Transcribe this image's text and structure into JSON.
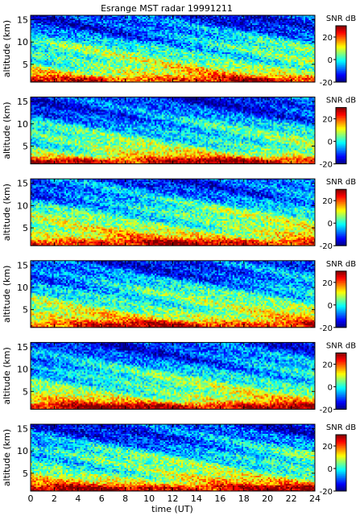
{
  "chart_data": {
    "type": "heatmap",
    "title": "Esrange MST radar 19991211",
    "xlabel": "time (UT)",
    "ylabel": "altitude (km)",
    "colorbar_label": "SNR dB",
    "xlim": [
      0,
      24
    ],
    "ylim": [
      1,
      16
    ],
    "clim": [
      -20,
      30
    ],
    "x_ticks": [
      0,
      2,
      4,
      6,
      8,
      10,
      12,
      14,
      16,
      18,
      20,
      22,
      24
    ],
    "y_ticks": [
      5,
      10,
      15
    ],
    "colorbar_ticks": [
      -20,
      0,
      20
    ],
    "colormap": "jet",
    "panels": [
      {
        "name": "",
        "layers": [
          {
            "altitude": 1.8,
            "snr": 22
          },
          {
            "altitude": 2.8,
            "snr": 12
          },
          {
            "altitude": 4.2,
            "snr": 8
          },
          {
            "altitude": 5.5,
            "snr": 4
          },
          {
            "altitude": 7.5,
            "snr": 2
          },
          {
            "altitude": 9,
            "snr": 0
          },
          {
            "altitude": 12,
            "snr": -8
          },
          {
            "altitude": 15,
            "snr": -12
          }
        ]
      },
      {
        "name": "",
        "layers": [
          {
            "altitude": 1.8,
            "snr": 26
          },
          {
            "altitude": 2.8,
            "snr": 12
          },
          {
            "altitude": 4.2,
            "snr": 6
          },
          {
            "altitude": 5.5,
            "snr": 3
          },
          {
            "altitude": 7.5,
            "snr": 0
          },
          {
            "altitude": 9,
            "snr": -2
          },
          {
            "altitude": 12,
            "snr": -9
          },
          {
            "altitude": 15,
            "snr": -13
          }
        ]
      },
      {
        "name": "",
        "layers": [
          {
            "altitude": 1.8,
            "snr": 25
          },
          {
            "altitude": 2.8,
            "snr": 14
          },
          {
            "altitude": 4.2,
            "snr": 9
          },
          {
            "altitude": 5.5,
            "snr": 5
          },
          {
            "altitude": 7.5,
            "snr": 3
          },
          {
            "altitude": 9,
            "snr": 1
          },
          {
            "altitude": 12,
            "snr": -7
          },
          {
            "altitude": 15,
            "snr": -11
          }
        ]
      },
      {
        "name": "",
        "layers": [
          {
            "altitude": 1.8,
            "snr": 24
          },
          {
            "altitude": 2.8,
            "snr": 13
          },
          {
            "altitude": 4.2,
            "snr": 8
          },
          {
            "altitude": 5.5,
            "snr": 4
          },
          {
            "altitude": 7.5,
            "snr": 2
          },
          {
            "altitude": 9,
            "snr": 0
          },
          {
            "altitude": 12,
            "snr": -8
          },
          {
            "altitude": 15,
            "snr": -12
          }
        ]
      },
      {
        "name": "",
        "layers": [
          {
            "altitude": 1.8,
            "snr": 27
          },
          {
            "altitude": 2.8,
            "snr": 13
          },
          {
            "altitude": 4.2,
            "snr": 7
          },
          {
            "altitude": 5.5,
            "snr": 4
          },
          {
            "altitude": 7.5,
            "snr": 1
          },
          {
            "altitude": 9,
            "snr": -1
          },
          {
            "altitude": 12,
            "snr": -8
          },
          {
            "altitude": 15,
            "snr": -12
          }
        ]
      },
      {
        "name": "",
        "layers": [
          {
            "altitude": 1.8,
            "snr": 26
          },
          {
            "altitude": 2.8,
            "snr": 14
          },
          {
            "altitude": 4.2,
            "snr": 8
          },
          {
            "altitude": 5.5,
            "snr": 4
          },
          {
            "altitude": 7.5,
            "snr": 2
          },
          {
            "altitude": 9,
            "snr": 0
          },
          {
            "altitude": 12,
            "snr": -8
          },
          {
            "altitude": 15,
            "snr": -12
          }
        ]
      }
    ]
  }
}
